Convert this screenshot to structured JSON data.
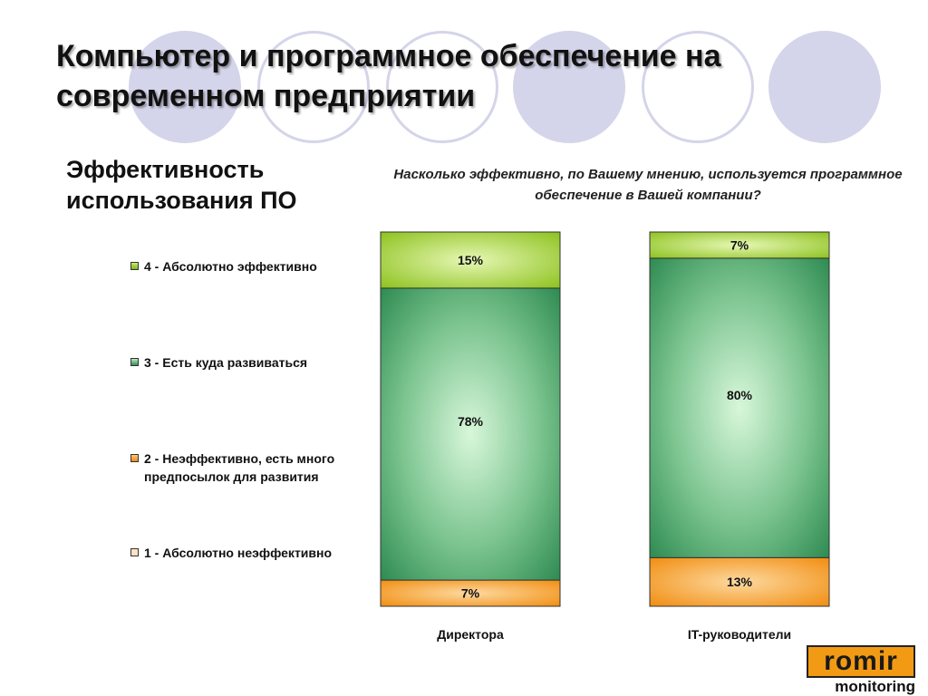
{
  "header": {
    "title": "Компьютер и программное обеспечение на современном предприятии"
  },
  "section": {
    "title": "Эффективность использования ПО"
  },
  "chart_question": "Насколько эффективно, по Вашему мнению, используется программное обеспечение в Вашей компании?",
  "legend": {
    "items": [
      {
        "label": "4 - Абсолютно эффективно",
        "color": "#a3cf2c"
      },
      {
        "label": "3 - Есть куда развиваться",
        "color": "#3a9a5e"
      },
      {
        "label": "2 - Неэффективно, есть много предпосылок для развития",
        "color": "#f6a030"
      },
      {
        "label": "1 - Абсолютно неэффективно",
        "color": "#fde2c6"
      }
    ]
  },
  "logo": {
    "word": "romir",
    "sub": "monitoring"
  },
  "chart_data": {
    "type": "bar",
    "stacked": true,
    "percent_stacked": true,
    "title": "Насколько эффективно, по Вашему мнению, используется программное обеспечение в Вашей компании?",
    "categories": [
      "Директора",
      "IT-руководители"
    ],
    "series": [
      {
        "name": "1 - Абсолютно неэффективно",
        "values": [
          0,
          0
        ],
        "labels": [
          "",
          ""
        ],
        "color": "#fde2c6"
      },
      {
        "name": "2 - Неэффективно, есть много предпосылок для развития",
        "values": [
          7,
          13
        ],
        "labels": [
          "7%",
          "13%"
        ],
        "color": "#f6a030"
      },
      {
        "name": "3 - Есть куда развиваться",
        "values": [
          78,
          80
        ],
        "labels": [
          "78%",
          "80%"
        ],
        "color": "#3a9a5e"
      },
      {
        "name": "4 - Абсолютно эффективно",
        "values": [
          15,
          7
        ],
        "labels": [
          "15%",
          "7%"
        ],
        "color": "#a3cf2c"
      }
    ],
    "ylim": [
      0,
      100
    ],
    "grid": false,
    "legend_position": "left"
  }
}
